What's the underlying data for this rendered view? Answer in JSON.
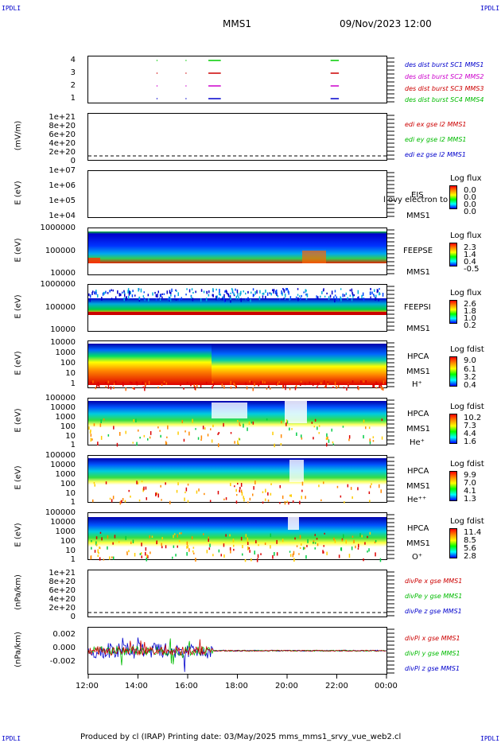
{
  "corners": {
    "tl": "IPDLI",
    "tr": "IPDLI",
    "bl": "IPDLI",
    "br": "IPDLI"
  },
  "header": {
    "mission": "MMS1",
    "datetime": "09/Nov/2023 12:00"
  },
  "footer": {
    "text": "Produced by cl (IRAP)   Printing date: 03/May/2025   mms_mms1_srvy_vue_web2.cl"
  },
  "colors": {
    "sc1": "#0000cc",
    "sc2": "#cc00cc",
    "sc3": "#cc0000",
    "sc4": "#00cc00",
    "red": "#cc0000",
    "green": "#00cc00",
    "blue": "#0000cc"
  },
  "xaxis": {
    "ticks": [
      "12:00",
      "14:00",
      "16:00",
      "18:00",
      "20:00",
      "22:00",
      "00:00"
    ]
  },
  "panel1": {
    "yticks": [
      "4",
      "3",
      "2",
      "1"
    ],
    "legend": [
      "des dist burst SC1 MMS1",
      "des dist burst SC2 MMS2",
      "des dist burst SC3 MMS3",
      "des dist burst SC4 MMS4"
    ]
  },
  "panel2": {
    "ylabel": "(mV/m)",
    "yticks": [
      "1e+21",
      "8e+20",
      "6e+20",
      "4e+20",
      "2e+20",
      "0"
    ],
    "legend": [
      "edi ex gse l2 MMS1",
      "edi ey gse l2 MMS1",
      "edi ez gse l2 MMS1"
    ]
  },
  "panel3": {
    "ylabel": "E (eV)",
    "yticks": [
      "1e+07",
      "1e+06",
      "1e+05",
      "1e+04"
    ],
    "side1": "EIS",
    "side2": "MMS1",
    "overlay": "l ovy electron to",
    "cb_title": "Log flux",
    "cb_vals": [
      "0.0",
      "0.0",
      "0.0",
      "0.0"
    ]
  },
  "panel4": {
    "ylabel": "E (eV)",
    "yticks": [
      "1000000",
      "100000",
      "10000"
    ],
    "side1": "FEEPSE",
    "side2": "MMS1",
    "cb_title": "Log flux",
    "cb_vals": [
      "2.3",
      "1.4",
      "0.4",
      "-0.5"
    ]
  },
  "panel5": {
    "ylabel": "E (eV)",
    "yticks": [
      "1000000",
      "100000",
      "10000"
    ],
    "side1": "FEEPSI",
    "side2": "MMS1",
    "cb_title": "Log flux",
    "cb_vals": [
      "2.6",
      "1.8",
      "1.0",
      "0.2"
    ]
  },
  "panel6": {
    "ylabel": "E (eV)",
    "yticks": [
      "10000",
      "1000",
      "100",
      "10",
      "1"
    ],
    "side1": "HPCA",
    "side2": "MMS1",
    "species": "H⁺",
    "cb_title": "Log fdist",
    "cb_vals": [
      "9.0",
      "6.1",
      "3.2",
      "0.4"
    ]
  },
  "panel7": {
    "ylabel": "E (eV)",
    "yticks": [
      "100000",
      "10000",
      "1000",
      "100",
      "10",
      "1"
    ],
    "side1": "HPCA",
    "side2": "MMS1",
    "species": "He⁺",
    "cb_title": "Log fdist",
    "cb_vals": [
      "10.2",
      "7.3",
      "4.4",
      "1.6"
    ]
  },
  "panel8": {
    "ylabel": "E (eV)",
    "yticks": [
      "100000",
      "10000",
      "1000",
      "100",
      "10",
      "1"
    ],
    "side1": "HPCA",
    "side2": "MMS1",
    "species": "He⁺⁺",
    "cb_title": "Log fdist",
    "cb_vals": [
      "9.9",
      "7.0",
      "4.1",
      "1.3"
    ]
  },
  "panel9": {
    "ylabel": "E (eV)",
    "yticks": [
      "100000",
      "10000",
      "1000",
      "100",
      "10",
      "1"
    ],
    "side1": "HPCA",
    "side2": "MMS1",
    "species": "O⁺",
    "cb_title": "Log fdist",
    "cb_vals": [
      "11.4",
      "8.5",
      "5.6",
      "2.8"
    ]
  },
  "panel10": {
    "ylabel": "(nPa/km)",
    "yticks": [
      "1e+21",
      "8e+20",
      "6e+20",
      "4e+20",
      "2e+20",
      "0"
    ],
    "legend": [
      "divPe x gse MMS1",
      "divPe y gse MMS1",
      "divPe z gse MMS1"
    ]
  },
  "panel11": {
    "ylabel": "(nPa/km)",
    "yticks": [
      "0.002",
      "0.000",
      "-0.002"
    ],
    "legend": [
      "divPi x gse MMS1",
      "divPi y gse MMS1",
      "divPi z gse MMS1"
    ]
  },
  "chart_data": {
    "type": "heatmap",
    "x_range": [
      "12:00",
      "00:00"
    ],
    "x_ticks": [
      "12:00",
      "14:00",
      "16:00",
      "18:00",
      "20:00",
      "22:00",
      "00:00"
    ],
    "burst_intervals": [
      {
        "sc": "SC1",
        "segments": [
          [
            "14:45",
            "14:47"
          ],
          [
            "15:55",
            "15:57"
          ],
          [
            "16:50",
            "17:20"
          ],
          [
            "21:45",
            "22:05"
          ]
        ]
      },
      {
        "sc": "SC2",
        "segments": [
          [
            "14:45",
            "14:47"
          ],
          [
            "15:55",
            "15:57"
          ],
          [
            "16:50",
            "17:20"
          ],
          [
            "21:45",
            "22:05"
          ]
        ]
      },
      {
        "sc": "SC3",
        "segments": [
          [
            "14:45",
            "14:47"
          ],
          [
            "15:55",
            "15:57"
          ],
          [
            "16:50",
            "17:20"
          ],
          [
            "21:45",
            "22:05"
          ]
        ]
      },
      {
        "sc": "SC4",
        "segments": [
          [
            "14:45",
            "14:47"
          ],
          [
            "15:55",
            "15:57"
          ],
          [
            "16:50",
            "17:20"
          ],
          [
            "21:45",
            "22:05"
          ]
        ]
      }
    ],
    "divpi_ylim": [
      -0.003,
      0.003
    ],
    "divpi_notes": "large fluctuations 12:00-17:00, near zero afterwards"
  }
}
